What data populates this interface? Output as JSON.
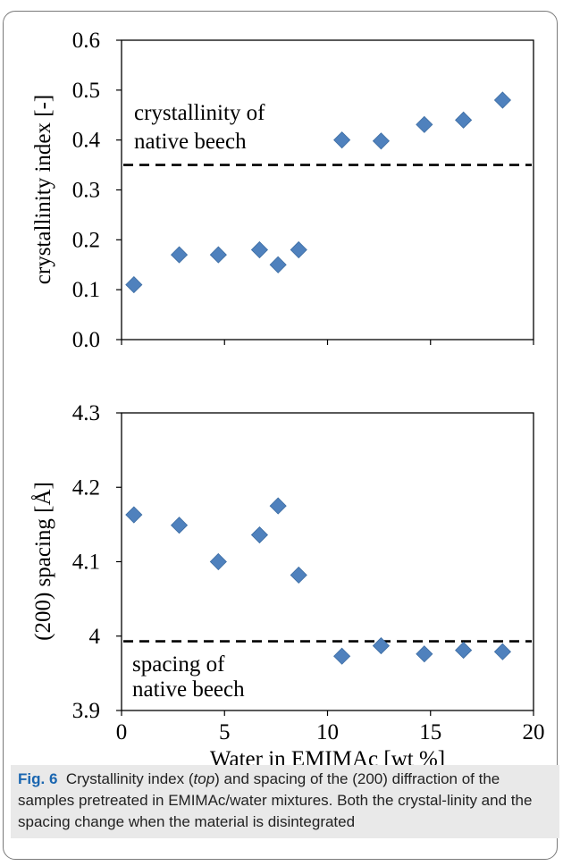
{
  "chart_data": [
    {
      "type": "scatter",
      "ylabel": "crystallinity index [-]",
      "ylim": [
        0.0,
        0.6
      ],
      "yticks": [
        "0.0",
        "0.1",
        "0.2",
        "0.3",
        "0.4",
        "0.5",
        "0.6"
      ],
      "xlim": [
        0,
        20
      ],
      "marker_color": "#4f81bd",
      "reference_line": {
        "y": 0.35,
        "label_line1": "crystallinity of",
        "label_line2": "native beech",
        "style": "dashed"
      },
      "points": [
        {
          "x": 0.6,
          "y": 0.11
        },
        {
          "x": 2.8,
          "y": 0.17
        },
        {
          "x": 4.7,
          "y": 0.17
        },
        {
          "x": 6.7,
          "y": 0.18
        },
        {
          "x": 7.6,
          "y": 0.15
        },
        {
          "x": 8.6,
          "y": 0.18
        },
        {
          "x": 10.7,
          "y": 0.4
        },
        {
          "x": 12.6,
          "y": 0.398
        },
        {
          "x": 14.7,
          "y": 0.431
        },
        {
          "x": 16.6,
          "y": 0.44
        },
        {
          "x": 18.5,
          "y": 0.48
        }
      ]
    },
    {
      "type": "scatter",
      "ylabel": "(200) spacing [Å]",
      "xlabel": "Water in EMIMAc [wt %]",
      "ylim": [
        3.9,
        4.3
      ],
      "yticks": [
        "3.9",
        "4",
        "4.1",
        "4.2",
        "4.3"
      ],
      "xlim": [
        0,
        20
      ],
      "xticks": [
        "0",
        "5",
        "10",
        "15",
        "20"
      ],
      "marker_color": "#4f81bd",
      "reference_line": {
        "y": 3.993,
        "label_line1": "spacing of",
        "label_line2": "native beech",
        "style": "dashed"
      },
      "points": [
        {
          "x": 0.6,
          "y": 4.163
        },
        {
          "x": 2.8,
          "y": 4.149
        },
        {
          "x": 4.7,
          "y": 4.1
        },
        {
          "x": 6.7,
          "y": 4.136
        },
        {
          "x": 7.6,
          "y": 4.175
        },
        {
          "x": 8.6,
          "y": 4.082
        },
        {
          "x": 10.7,
          "y": 3.973
        },
        {
          "x": 12.6,
          "y": 3.987
        },
        {
          "x": 14.7,
          "y": 3.976
        },
        {
          "x": 16.6,
          "y": 3.981
        },
        {
          "x": 18.5,
          "y": 3.979
        }
      ]
    }
  ],
  "caption": {
    "fig_label": "Fig. 6",
    "part1": "Crystallinity index (",
    "top_word": "top",
    "part2": ") and spacing of the (200) diffraction of the samples pretreated in EMIMAc/water mixtures. Both the crystal-linity and the spacing change when the material is disintegrated"
  }
}
